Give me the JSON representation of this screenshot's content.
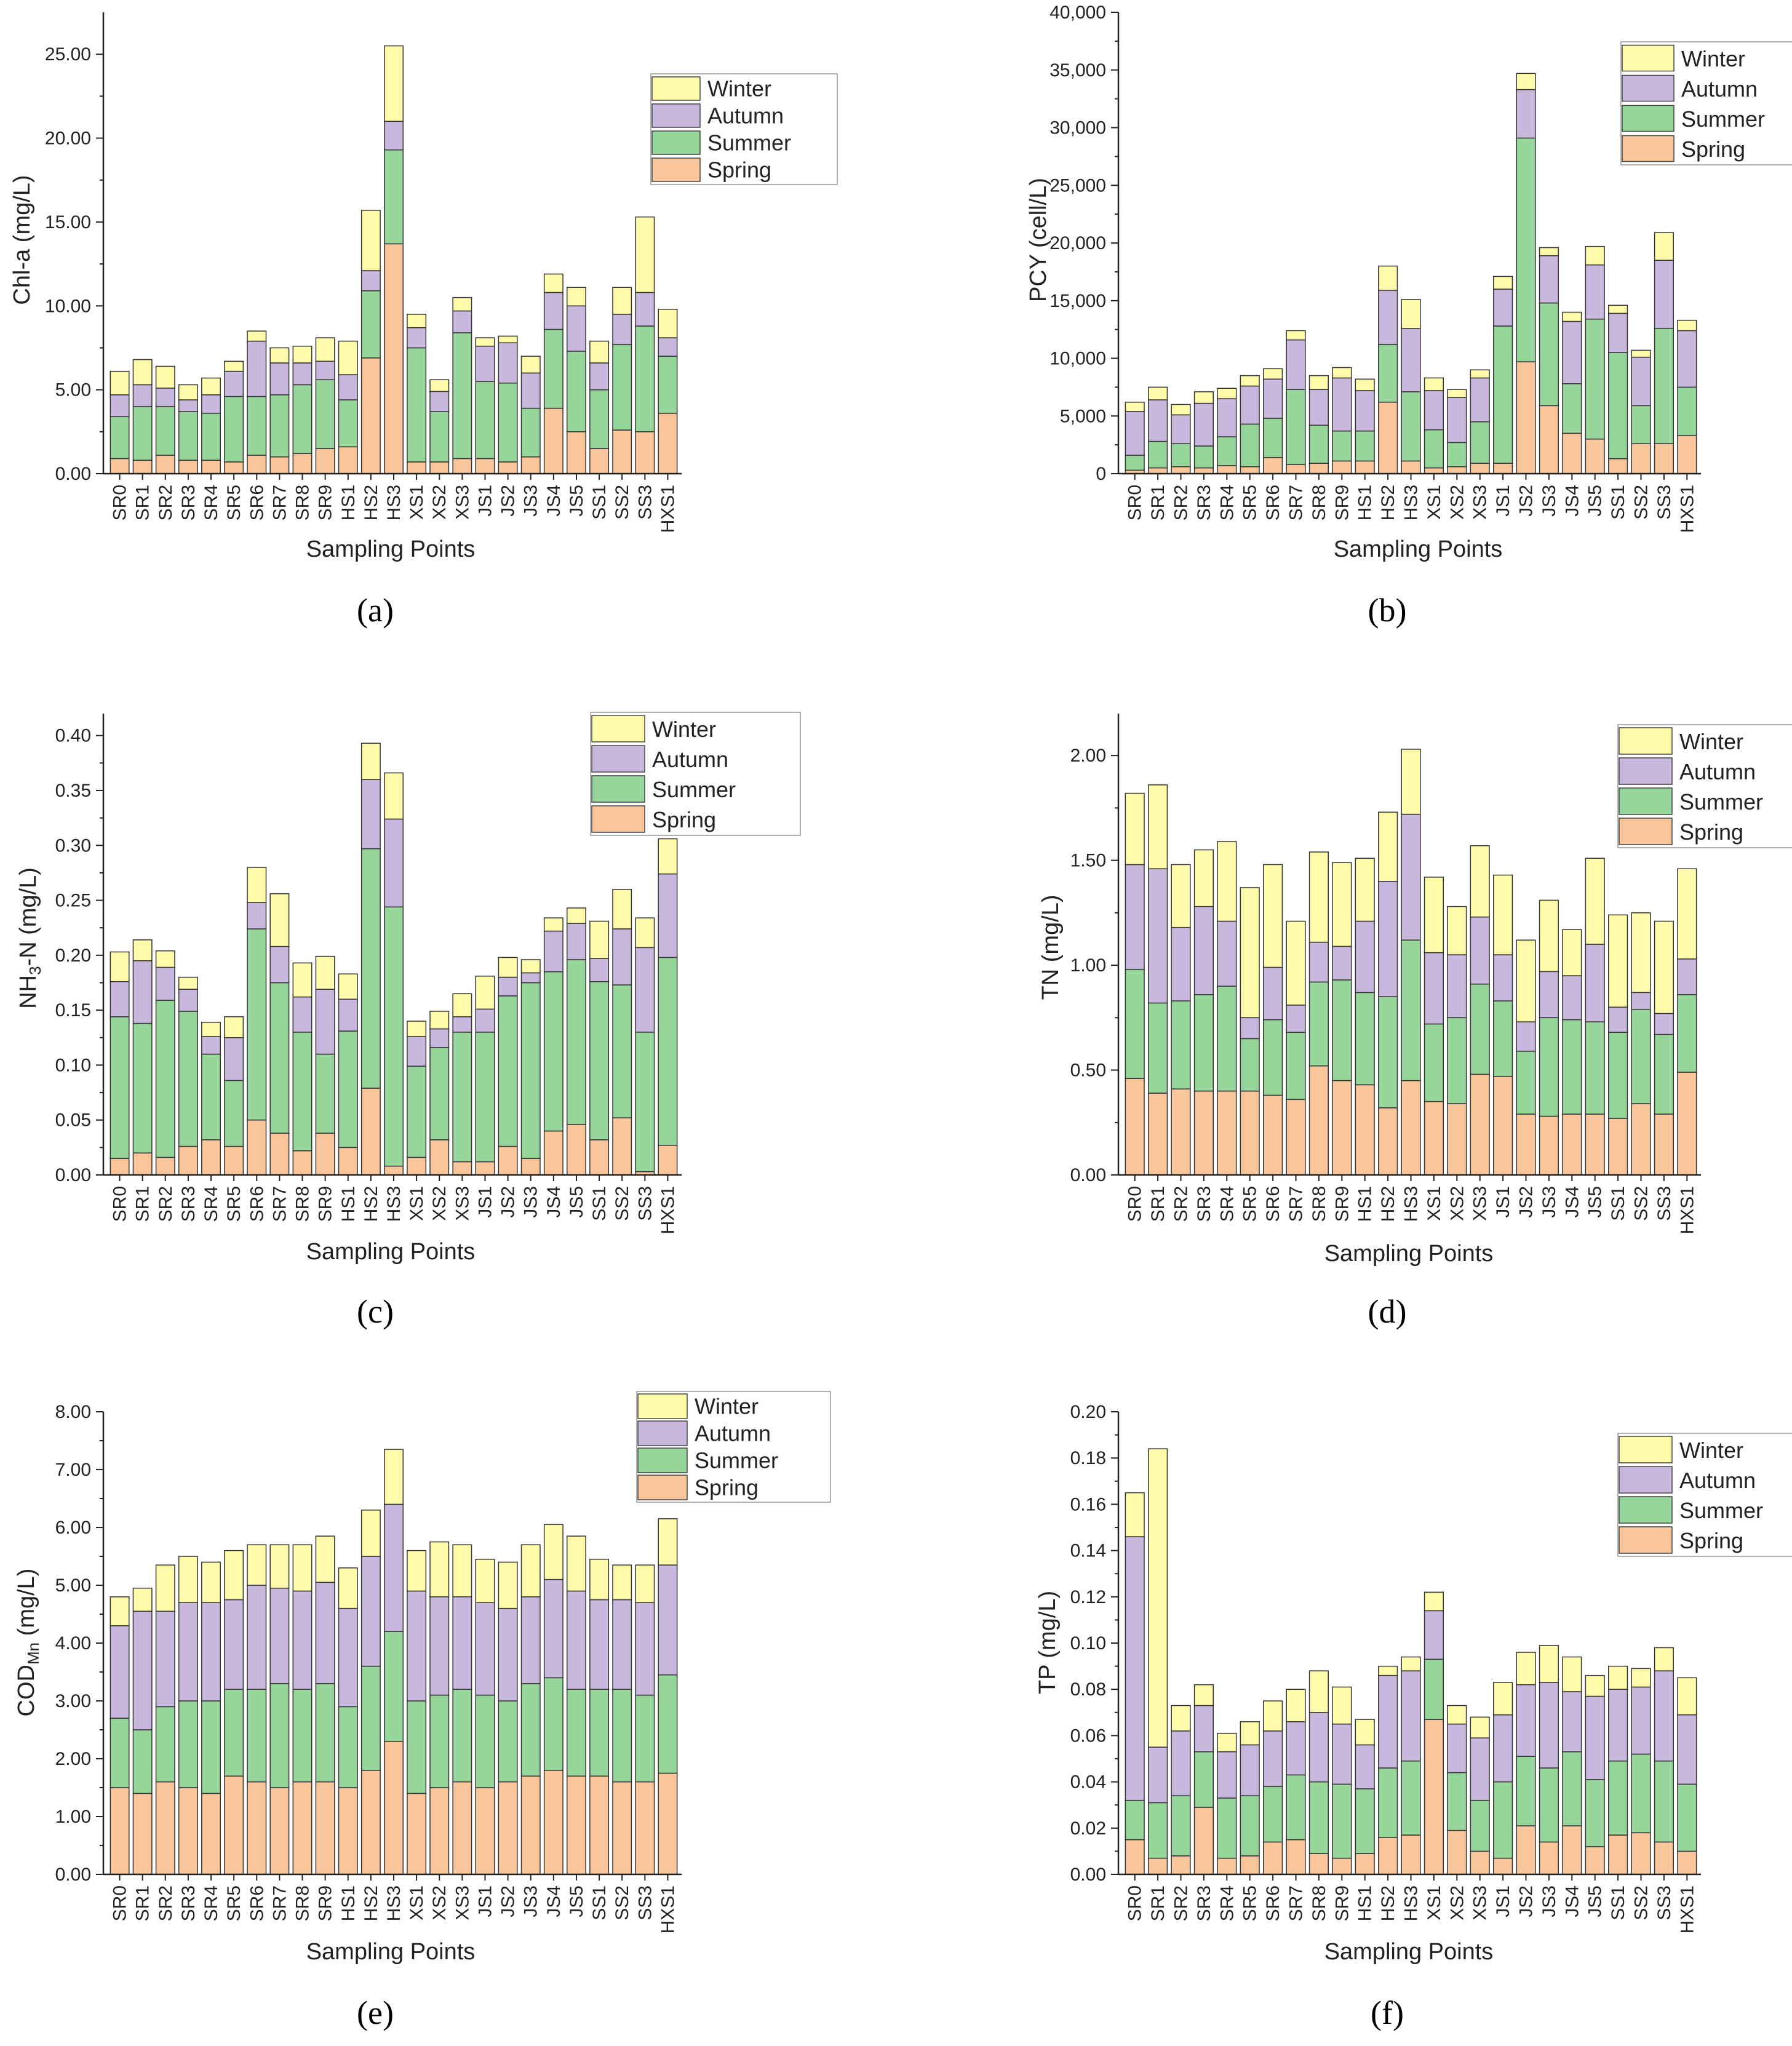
{
  "colors": {
    "Spring": "#f9c59a",
    "Summer": "#97d69a",
    "Autumn": "#c9b8de",
    "Winter": "#fffbab",
    "axis": "#222222"
  },
  "xlabel": "Sampling Points",
  "chart_data": [
    {
      "panel": "(a)",
      "type": "bar",
      "stacked": true,
      "ylabel": "Chl-a (mg/L)",
      "ylim": [
        0,
        27.5
      ],
      "yticks": [
        0,
        5,
        10,
        15,
        20,
        25
      ],
      "ytick_labels": [
        "0.00",
        "5.00",
        "10.00",
        "15.00",
        "20.00",
        "25.00"
      ],
      "categories": [
        "SR0",
        "SR1",
        "SR2",
        "SR3",
        "SR4",
        "SR5",
        "SR6",
        "SR7",
        "SR8",
        "SR9",
        "HS1",
        "HS2",
        "HS3",
        "XS1",
        "XS2",
        "XS3",
        "JS1",
        "JS2",
        "JS3",
        "JS4",
        "JS5",
        "SS1",
        "SS2",
        "SS3",
        "HXS1"
      ],
      "legend": [
        "Winter",
        "Autumn",
        "Summer",
        "Spring"
      ],
      "legend_position": "top-right",
      "series": [
        {
          "name": "Spring",
          "values": [
            0.9,
            0.8,
            1.1,
            0.8,
            0.8,
            0.7,
            1.1,
            1.0,
            1.2,
            1.5,
            1.6,
            6.9,
            13.7,
            0.7,
            0.7,
            0.9,
            0.9,
            0.7,
            1.0,
            3.9,
            2.5,
            1.5,
            2.6,
            2.5,
            3.6
          ]
        },
        {
          "name": "Summer",
          "values": [
            2.5,
            3.2,
            2.9,
            2.9,
            2.8,
            3.9,
            3.5,
            3.7,
            4.1,
            4.1,
            2.8,
            4.0,
            5.6,
            6.8,
            3.0,
            7.5,
            4.6,
            4.7,
            2.9,
            4.7,
            4.8,
            3.5,
            5.1,
            6.3,
            3.4
          ]
        },
        {
          "name": "Autumn",
          "values": [
            1.3,
            1.3,
            1.1,
            0.7,
            1.1,
            1.5,
            3.3,
            1.9,
            1.3,
            1.1,
            1.5,
            1.2,
            1.7,
            1.2,
            1.2,
            1.3,
            2.1,
            2.4,
            2.1,
            2.2,
            2.7,
            1.6,
            1.8,
            2.0,
            1.1
          ]
        },
        {
          "name": "Winter",
          "values": [
            1.4,
            1.5,
            1.3,
            0.9,
            1.0,
            0.6,
            0.6,
            0.9,
            1.0,
            1.4,
            2.0,
            3.6,
            4.5,
            0.8,
            0.7,
            0.8,
            0.5,
            0.4,
            1.0,
            1.1,
            1.1,
            1.3,
            1.6,
            4.5,
            1.7
          ]
        }
      ]
    },
    {
      "panel": "(b)",
      "type": "bar",
      "stacked": true,
      "ylabel": "PCY (cell/L)",
      "ylim": [
        0,
        40000
      ],
      "yticks": [
        0,
        5000,
        10000,
        15000,
        20000,
        25000,
        30000,
        35000,
        40000
      ],
      "ytick_labels": [
        "0",
        "5,000",
        "10,000",
        "15,000",
        "20,000",
        "25,000",
        "30,000",
        "35,000",
        "40,000"
      ],
      "categories": [
        "SR0",
        "SR1",
        "SR2",
        "SR3",
        "SR4",
        "SR5",
        "SR6",
        "SR7",
        "SR8",
        "SR9",
        "HS1",
        "HS2",
        "HS3",
        "XS1",
        "XS2",
        "XS3",
        "JS1",
        "JS2",
        "JS3",
        "JS4",
        "JS5",
        "SS1",
        "SS2",
        "SS3",
        "HXS1"
      ],
      "legend": [
        "Winter",
        "Autumn",
        "Summer",
        "Spring"
      ],
      "legend_position": "top-right",
      "series": [
        {
          "name": "Spring",
          "values": [
            300,
            500,
            600,
            500,
            700,
            600,
            1400,
            800,
            900,
            1100,
            1100,
            6200,
            1100,
            500,
            600,
            900,
            900,
            9700,
            5900,
            3500,
            3000,
            1300,
            2600,
            2600,
            3300
          ]
        },
        {
          "name": "Summer",
          "values": [
            1300,
            2300,
            2000,
            1900,
            2500,
            3700,
            3400,
            6500,
            3300,
            2600,
            2600,
            5000,
            6000,
            3300,
            2100,
            3600,
            11900,
            19400,
            8900,
            4300,
            10400,
            9200,
            3300,
            10000,
            4200
          ]
        },
        {
          "name": "Autumn",
          "values": [
            3800,
            3600,
            2500,
            3700,
            3300,
            3300,
            3400,
            4300,
            3100,
            4600,
            3500,
            4700,
            5500,
            3400,
            3900,
            3800,
            3200,
            4200,
            4100,
            5400,
            4700,
            3400,
            4200,
            5900,
            4900
          ]
        },
        {
          "name": "Winter",
          "values": [
            800,
            1100,
            900,
            1000,
            900,
            900,
            900,
            800,
            1200,
            900,
            1000,
            2100,
            2500,
            1100,
            700,
            700,
            1100,
            1400,
            700,
            800,
            1600,
            700,
            600,
            2400,
            900
          ]
        }
      ]
    },
    {
      "panel": "(c)",
      "type": "bar",
      "stacked": true,
      "ylabel": "NH3-N (mg/L)",
      "ylim": [
        0,
        0.42
      ],
      "yticks": [
        0,
        0.05,
        0.1,
        0.15,
        0.2,
        0.25,
        0.3,
        0.35,
        0.4
      ],
      "ytick_labels": [
        "0.00",
        "0.05",
        "0.10",
        "0.15",
        "0.20",
        "0.25",
        "0.30",
        "0.35",
        "0.40"
      ],
      "categories": [
        "SR0",
        "SR1",
        "SR2",
        "SR3",
        "SR4",
        "SR5",
        "SR6",
        "SR7",
        "SR8",
        "SR9",
        "HS1",
        "HS2",
        "HS3",
        "XS1",
        "XS2",
        "XS3",
        "JS1",
        "JS2",
        "JS3",
        "JS4",
        "JS5",
        "SS1",
        "SS2",
        "SS3",
        "HXS1"
      ],
      "legend": [
        "Winter",
        "Autumn",
        "Summer",
        "Spring"
      ],
      "legend_position": "top-right",
      "series": [
        {
          "name": "Spring",
          "values": [
            0.015,
            0.02,
            0.016,
            0.026,
            0.032,
            0.026,
            0.05,
            0.038,
            0.022,
            0.038,
            0.025,
            0.079,
            0.008,
            0.016,
            0.032,
            0.012,
            0.012,
            0.026,
            0.015,
            0.04,
            0.046,
            0.032,
            0.052,
            0.003,
            0.027
          ]
        },
        {
          "name": "Summer",
          "values": [
            0.129,
            0.118,
            0.143,
            0.123,
            0.078,
            0.06,
            0.174,
            0.137,
            0.108,
            0.072,
            0.106,
            0.218,
            0.236,
            0.083,
            0.084,
            0.118,
            0.118,
            0.137,
            0.16,
            0.145,
            0.15,
            0.144,
            0.121,
            0.127,
            0.171
          ]
        },
        {
          "name": "Autumn",
          "values": [
            0.032,
            0.057,
            0.03,
            0.02,
            0.016,
            0.039,
            0.024,
            0.033,
            0.032,
            0.059,
            0.029,
            0.063,
            0.08,
            0.027,
            0.017,
            0.014,
            0.021,
            0.017,
            0.009,
            0.037,
            0.033,
            0.021,
            0.051,
            0.077,
            0.076
          ]
        },
        {
          "name": "Winter",
          "values": [
            0.027,
            0.019,
            0.015,
            0.011,
            0.013,
            0.019,
            0.032,
            0.048,
            0.031,
            0.03,
            0.023,
            0.033,
            0.042,
            0.014,
            0.016,
            0.021,
            0.03,
            0.018,
            0.012,
            0.012,
            0.014,
            0.034,
            0.036,
            0.027,
            0.032
          ]
        }
      ]
    },
    {
      "panel": "(d)",
      "type": "bar",
      "stacked": true,
      "ylabel": "TN (mg/L)",
      "ylim": [
        0,
        2.2
      ],
      "yticks": [
        0,
        0.5,
        1.0,
        1.5,
        2.0
      ],
      "ytick_labels": [
        "0.00",
        "0.50",
        "1.00",
        "1.50",
        "2.00"
      ],
      "categories": [
        "SR0",
        "SR1",
        "SR2",
        "SR3",
        "SR4",
        "SR5",
        "SR6",
        "SR7",
        "SR8",
        "SR9",
        "HS1",
        "HS2",
        "HS3",
        "XS1",
        "XS2",
        "XS3",
        "JS1",
        "JS2",
        "JS3",
        "JS4",
        "JS5",
        "SS1",
        "SS2",
        "SS3",
        "HXS1"
      ],
      "legend": [
        "Winter",
        "Autumn",
        "Summer",
        "Spring"
      ],
      "legend_position": "top-right",
      "series": [
        {
          "name": "Spring",
          "values": [
            0.46,
            0.39,
            0.41,
            0.4,
            0.4,
            0.4,
            0.38,
            0.36,
            0.52,
            0.45,
            0.43,
            0.32,
            0.45,
            0.35,
            0.34,
            0.48,
            0.47,
            0.29,
            0.28,
            0.29,
            0.29,
            0.27,
            0.34,
            0.29,
            0.49
          ]
        },
        {
          "name": "Summer",
          "values": [
            0.52,
            0.43,
            0.42,
            0.46,
            0.5,
            0.25,
            0.36,
            0.32,
            0.4,
            0.48,
            0.44,
            0.53,
            0.67,
            0.37,
            0.41,
            0.43,
            0.36,
            0.3,
            0.47,
            0.45,
            0.44,
            0.41,
            0.45,
            0.38,
            0.37
          ]
        },
        {
          "name": "Autumn",
          "values": [
            0.5,
            0.64,
            0.35,
            0.42,
            0.31,
            0.1,
            0.25,
            0.13,
            0.19,
            0.16,
            0.34,
            0.55,
            0.6,
            0.34,
            0.3,
            0.32,
            0.22,
            0.14,
            0.22,
            0.21,
            0.37,
            0.12,
            0.08,
            0.1,
            0.17
          ]
        },
        {
          "name": "Winter",
          "values": [
            0.34,
            0.4,
            0.3,
            0.27,
            0.38,
            0.62,
            0.49,
            0.4,
            0.43,
            0.4,
            0.3,
            0.33,
            0.31,
            0.36,
            0.23,
            0.34,
            0.38,
            0.39,
            0.34,
            0.22,
            0.41,
            0.44,
            0.38,
            0.44,
            0.43
          ]
        }
      ]
    },
    {
      "panel": "(e)",
      "type": "bar",
      "stacked": true,
      "ylabel": "CODMn (mg/L)",
      "ylim": [
        0,
        8.0
      ],
      "yticks": [
        0,
        1,
        2,
        3,
        4,
        5,
        6,
        7,
        8
      ],
      "ytick_labels": [
        "0.00",
        "1.00",
        "2.00",
        "3.00",
        "4.00",
        "5.00",
        "6.00",
        "7.00",
        "8.00"
      ],
      "categories": [
        "SR0",
        "SR1",
        "SR2",
        "SR3",
        "SR4",
        "SR5",
        "SR6",
        "SR7",
        "SR8",
        "SR9",
        "HS1",
        "HS2",
        "HS3",
        "XS1",
        "XS2",
        "XS3",
        "JS1",
        "JS2",
        "JS3",
        "JS4",
        "JS5",
        "SS1",
        "SS2",
        "SS3",
        "HXS1"
      ],
      "legend": [
        "Winter",
        "Autumn",
        "Summer",
        "Spring"
      ],
      "legend_position": "top-right",
      "series": [
        {
          "name": "Spring",
          "values": [
            1.5,
            1.4,
            1.6,
            1.5,
            1.4,
            1.7,
            1.6,
            1.5,
            1.6,
            1.6,
            1.5,
            1.8,
            2.3,
            1.4,
            1.5,
            1.6,
            1.5,
            1.6,
            1.7,
            1.8,
            1.7,
            1.7,
            1.6,
            1.6,
            1.75
          ]
        },
        {
          "name": "Summer",
          "values": [
            1.2,
            1.1,
            1.3,
            1.5,
            1.6,
            1.5,
            1.6,
            1.8,
            1.6,
            1.7,
            1.4,
            1.8,
            1.9,
            1.6,
            1.6,
            1.6,
            1.6,
            1.4,
            1.6,
            1.6,
            1.5,
            1.5,
            1.6,
            1.5,
            1.7
          ]
        },
        {
          "name": "Autumn",
          "values": [
            1.6,
            2.05,
            1.65,
            1.7,
            1.7,
            1.55,
            1.8,
            1.65,
            1.7,
            1.75,
            1.7,
            1.9,
            2.2,
            1.9,
            1.7,
            1.6,
            1.6,
            1.6,
            1.5,
            1.7,
            1.7,
            1.55,
            1.55,
            1.6,
            1.9
          ]
        },
        {
          "name": "Winter",
          "values": [
            0.5,
            0.4,
            0.8,
            0.8,
            0.7,
            0.85,
            0.7,
            0.75,
            0.8,
            0.8,
            0.7,
            0.8,
            0.95,
            0.7,
            0.95,
            0.9,
            0.75,
            0.8,
            0.9,
            0.95,
            0.95,
            0.7,
            0.6,
            0.65,
            0.8
          ]
        }
      ]
    },
    {
      "panel": "(f)",
      "type": "bar",
      "stacked": true,
      "ylabel": "TP (mg/L)",
      "ylim": [
        0,
        0.2
      ],
      "yticks": [
        0,
        0.02,
        0.04,
        0.06,
        0.08,
        0.1,
        0.12,
        0.14,
        0.16,
        0.18,
        0.2
      ],
      "ytick_labels": [
        "0.00",
        "0.02",
        "0.04",
        "0.06",
        "0.08",
        "0.10",
        "0.12",
        "0.14",
        "0.16",
        "0.18",
        "0.20"
      ],
      "categories": [
        "SR0",
        "SR1",
        "SR2",
        "SR3",
        "SR4",
        "SR5",
        "SR6",
        "SR7",
        "SR8",
        "SR9",
        "HS1",
        "HS2",
        "HS3",
        "XS1",
        "XS2",
        "XS3",
        "JS1",
        "JS2",
        "JS3",
        "JS4",
        "JS5",
        "SS1",
        "SS2",
        "SS3",
        "HXS1"
      ],
      "legend": [
        "Winter",
        "Autumn",
        "Summer",
        "Spring"
      ],
      "legend_position": "top-right",
      "series": [
        {
          "name": "Spring",
          "values": [
            0.015,
            0.007,
            0.008,
            0.029,
            0.007,
            0.008,
            0.014,
            0.015,
            0.009,
            0.007,
            0.009,
            0.016,
            0.017,
            0.067,
            0.019,
            0.01,
            0.007,
            0.021,
            0.014,
            0.021,
            0.012,
            0.017,
            0.018,
            0.014,
            0.01
          ]
        },
        {
          "name": "Summer",
          "values": [
            0.017,
            0.024,
            0.026,
            0.024,
            0.026,
            0.026,
            0.024,
            0.028,
            0.031,
            0.032,
            0.028,
            0.03,
            0.032,
            0.026,
            0.025,
            0.022,
            0.033,
            0.03,
            0.032,
            0.032,
            0.029,
            0.032,
            0.034,
            0.035,
            0.029
          ]
        },
        {
          "name": "Autumn",
          "values": [
            0.114,
            0.024,
            0.028,
            0.02,
            0.02,
            0.022,
            0.024,
            0.023,
            0.03,
            0.026,
            0.019,
            0.04,
            0.039,
            0.021,
            0.021,
            0.027,
            0.029,
            0.031,
            0.037,
            0.026,
            0.036,
            0.031,
            0.029,
            0.039,
            0.03
          ]
        },
        {
          "name": "Winter",
          "values": [
            0.019,
            0.129,
            0.011,
            0.009,
            0.008,
            0.01,
            0.013,
            0.014,
            0.018,
            0.016,
            0.011,
            0.004,
            0.006,
            0.008,
            0.008,
            0.009,
            0.014,
            0.014,
            0.016,
            0.015,
            0.009,
            0.01,
            0.008,
            0.01,
            0.016
          ]
        }
      ]
    }
  ]
}
